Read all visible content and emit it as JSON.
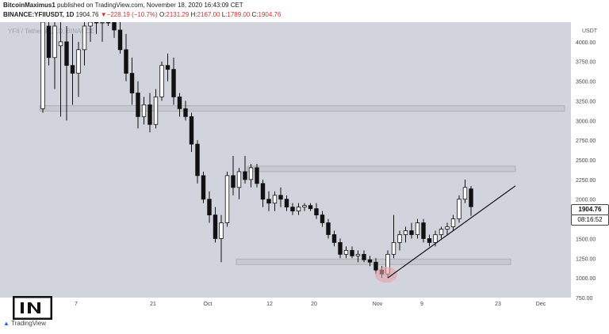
{
  "header": {
    "author": "BitcoinMaximus1",
    "published": "published on TradingView.com, November 18, 2020 16:43:09 CET",
    "symbol": "BINANCE:YFIIUSDT, 1D",
    "last": "1904.76",
    "change": "▼−228.19 (−10.7%)",
    "o_label": "O:",
    "o_value": "2131.29",
    "h_label": "H:",
    "h_value": "2167.00",
    "l_label": "L:",
    "l_value": "1789.00",
    "c_label": "C:",
    "c_value": "1904.76"
  },
  "watermark": "YFII / TetherUS, 1D, BINANCE",
  "price_tag": "1904.76",
  "countdown_tag": "08:16:52",
  "logo_text": "TradingView",
  "colors": {
    "up": "#ffffff",
    "down": "#111111",
    "zone": "#c8c9cd",
    "background": "#d1d4dc",
    "highlight": "#e8a0a8"
  },
  "chart_data": {
    "type": "candlestick",
    "y_axis_unit": "USDT",
    "ylim": [
      750,
      4250
    ],
    "yticks": [
      "4000.00",
      "3750.00",
      "3500.00",
      "3250.00",
      "3000.00",
      "2750.00",
      "2500.00",
      "2250.00",
      "2000.00",
      "1750.00",
      "1500.00",
      "1250.00",
      "1000.00",
      "750.00"
    ],
    "xticks": [
      "7",
      "21",
      "Oct",
      "12",
      "20",
      "Nov",
      "9",
      "23",
      "Dec"
    ],
    "horizontal_zones": [
      {
        "low": 3120,
        "high": 3190
      },
      {
        "low": 2350,
        "high": 2420
      },
      {
        "low": 1170,
        "high": 1240
      }
    ],
    "support_line": {
      "from": {
        "x": "Nov 5",
        "price": 1000
      },
      "to": {
        "x": "Nov 23",
        "price": 2170
      }
    },
    "highlight_circle": {
      "x": "Nov 5",
      "price": 1040
    },
    "candles": [
      {
        "o": 3150,
        "h": 4700,
        "l": 3100,
        "c": 4600
      },
      {
        "o": 4200,
        "h": 4800,
        "l": 3700,
        "c": 3800
      },
      {
        "o": 3800,
        "h": 4300,
        "l": 3400,
        "c": 4200
      },
      {
        "o": 3950,
        "h": 4250,
        "l": 3050,
        "c": 4000
      },
      {
        "o": 4000,
        "h": 4200,
        "l": 3000,
        "c": 3700
      },
      {
        "o": 3700,
        "h": 4100,
        "l": 3200,
        "c": 3600
      },
      {
        "o": 3600,
        "h": 4000,
        "l": 3300,
        "c": 3900
      },
      {
        "o": 3900,
        "h": 4300,
        "l": 3700,
        "c": 4200
      },
      {
        "o": 4200,
        "h": 4600,
        "l": 4000,
        "c": 4500
      },
      {
        "o": 4500,
        "h": 4800,
        "l": 4100,
        "c": 4300
      },
      {
        "o": 4300,
        "h": 4700,
        "l": 4000,
        "c": 4600
      },
      {
        "o": 4600,
        "h": 4800,
        "l": 4200,
        "c": 4400
      },
      {
        "o": 4400,
        "h": 4600,
        "l": 4050,
        "c": 4150
      },
      {
        "o": 4150,
        "h": 4300,
        "l": 3850,
        "c": 3900
      },
      {
        "o": 3900,
        "h": 4100,
        "l": 3500,
        "c": 3600
      },
      {
        "o": 3600,
        "h": 3800,
        "l": 3200,
        "c": 3350
      },
      {
        "o": 3350,
        "h": 3500,
        "l": 2900,
        "c": 3050
      },
      {
        "o": 3050,
        "h": 3300,
        "l": 2950,
        "c": 3200
      },
      {
        "o": 3200,
        "h": 3350,
        "l": 2850,
        "c": 2950
      },
      {
        "o": 2950,
        "h": 3400,
        "l": 2900,
        "c": 3300
      },
      {
        "o": 3300,
        "h": 3750,
        "l": 3250,
        "c": 3700
      },
      {
        "o": 3700,
        "h": 3850,
        "l": 3500,
        "c": 3650
      },
      {
        "o": 3650,
        "h": 3800,
        "l": 3200,
        "c": 3300
      },
      {
        "o": 3300,
        "h": 3350,
        "l": 3050,
        "c": 3150
      },
      {
        "o": 3150,
        "h": 3250,
        "l": 3000,
        "c": 3050
      },
      {
        "o": 3050,
        "h": 3100,
        "l": 2600,
        "c": 2700
      },
      {
        "o": 2700,
        "h": 2750,
        "l": 2200,
        "c": 2300
      },
      {
        "o": 2300,
        "h": 2350,
        "l": 1950,
        "c": 2000
      },
      {
        "o": 2000,
        "h": 2100,
        "l": 1700,
        "c": 1800
      },
      {
        "o": 1800,
        "h": 1900,
        "l": 1450,
        "c": 1500
      },
      {
        "o": 1500,
        "h": 1800,
        "l": 1200,
        "c": 1700
      },
      {
        "o": 1700,
        "h": 2350,
        "l": 1650,
        "c": 2300
      },
      {
        "o": 2300,
        "h": 2550,
        "l": 2050,
        "c": 2150
      },
      {
        "o": 2150,
        "h": 2400,
        "l": 2000,
        "c": 2350
      },
      {
        "o": 2350,
        "h": 2550,
        "l": 2200,
        "c": 2250
      },
      {
        "o": 2250,
        "h": 2450,
        "l": 2150,
        "c": 2400
      },
      {
        "o": 2400,
        "h": 2450,
        "l": 2150,
        "c": 2200
      },
      {
        "o": 2200,
        "h": 2250,
        "l": 1900,
        "c": 2000
      },
      {
        "o": 2000,
        "h": 2100,
        "l": 1850,
        "c": 1950
      },
      {
        "o": 1950,
        "h": 2100,
        "l": 1850,
        "c": 2050
      },
      {
        "o": 2050,
        "h": 2150,
        "l": 1900,
        "c": 2000
      },
      {
        "o": 2000,
        "h": 2050,
        "l": 1850,
        "c": 1900
      },
      {
        "o": 1900,
        "h": 1950,
        "l": 1800,
        "c": 1850
      },
      {
        "o": 1850,
        "h": 1950,
        "l": 1800,
        "c": 1900
      },
      {
        "o": 1900,
        "h": 1950,
        "l": 1850,
        "c": 1920
      },
      {
        "o": 1920,
        "h": 1950,
        "l": 1850,
        "c": 1880
      },
      {
        "o": 1880,
        "h": 1950,
        "l": 1750,
        "c": 1800
      },
      {
        "o": 1800,
        "h": 1850,
        "l": 1650,
        "c": 1700
      },
      {
        "o": 1700,
        "h": 1750,
        "l": 1500,
        "c": 1550
      },
      {
        "o": 1550,
        "h": 1600,
        "l": 1400,
        "c": 1450
      },
      {
        "o": 1450,
        "h": 1500,
        "l": 1250,
        "c": 1300
      },
      {
        "o": 1300,
        "h": 1400,
        "l": 1250,
        "c": 1350
      },
      {
        "o": 1350,
        "h": 1400,
        "l": 1250,
        "c": 1280
      },
      {
        "o": 1280,
        "h": 1350,
        "l": 1200,
        "c": 1300
      },
      {
        "o": 1300,
        "h": 1350,
        "l": 1200,
        "c": 1230
      },
      {
        "o": 1230,
        "h": 1280,
        "l": 1150,
        "c": 1200
      },
      {
        "o": 1200,
        "h": 1250,
        "l": 1050,
        "c": 1100
      },
      {
        "o": 1100,
        "h": 1150,
        "l": 1000,
        "c": 1050
      },
      {
        "o": 1050,
        "h": 1350,
        "l": 1000,
        "c": 1300
      },
      {
        "o": 1300,
        "h": 1800,
        "l": 1250,
        "c": 1450
      },
      {
        "o": 1450,
        "h": 1600,
        "l": 1350,
        "c": 1550
      },
      {
        "o": 1550,
        "h": 1650,
        "l": 1450,
        "c": 1600
      },
      {
        "o": 1600,
        "h": 1700,
        "l": 1500,
        "c": 1550
      },
      {
        "o": 1550,
        "h": 1750,
        "l": 1500,
        "c": 1700
      },
      {
        "o": 1700,
        "h": 1750,
        "l": 1450,
        "c": 1500
      },
      {
        "o": 1500,
        "h": 1550,
        "l": 1400,
        "c": 1450
      },
      {
        "o": 1450,
        "h": 1600,
        "l": 1400,
        "c": 1550
      },
      {
        "o": 1550,
        "h": 1650,
        "l": 1500,
        "c": 1620
      },
      {
        "o": 1620,
        "h": 1700,
        "l": 1550,
        "c": 1650
      },
      {
        "o": 1650,
        "h": 1800,
        "l": 1600,
        "c": 1750
      },
      {
        "o": 1750,
        "h": 2050,
        "l": 1700,
        "c": 2000
      },
      {
        "o": 2000,
        "h": 2250,
        "l": 1950,
        "c": 2150
      },
      {
        "o": 2131.29,
        "h": 2167,
        "l": 1789,
        "c": 1904.76
      }
    ]
  }
}
